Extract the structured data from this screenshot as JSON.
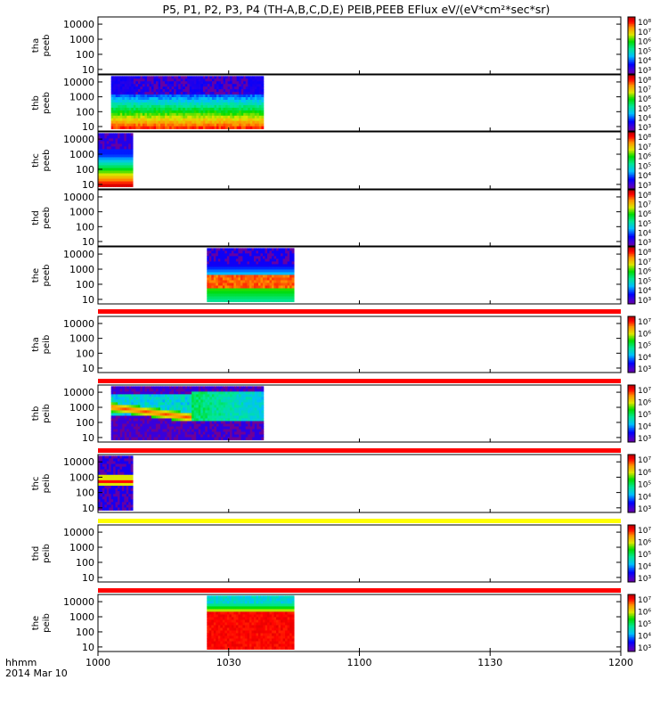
{
  "title": "P5, P1, P2, P3, P4 (TH-A,B,C,D,E) PEIB,PEEB EFlux eV/(eV*cm²*sec*sr)",
  "footer": {
    "time_label": "hhmm",
    "date_label": "2014 Mar 10"
  },
  "x_axis": {
    "range": [
      "10:00",
      "12:00"
    ],
    "ticks": [
      {
        "label": "1000",
        "minutes": 0
      },
      {
        "label": "1030",
        "minutes": 30
      },
      {
        "label": "1100",
        "minutes": 60
      },
      {
        "label": "1130",
        "minutes": 90
      },
      {
        "label": "1200",
        "minutes": 120
      }
    ]
  },
  "colorbars": {
    "peeb": {
      "ticks": [
        "10³",
        "10⁴",
        "10⁵",
        "10⁶",
        "10⁷",
        "10⁸"
      ]
    },
    "peib": {
      "ticks": [
        "10³",
        "10⁴",
        "10⁵",
        "10⁶",
        "10⁷"
      ]
    }
  },
  "panels": [
    {
      "probe": "tha",
      "product": "peeb",
      "y_ticks": [
        "10",
        "100",
        "1000",
        "10000"
      ],
      "has_data": false
    },
    {
      "probe": "thb",
      "product": "peeb",
      "y_ticks": [
        "10",
        "100",
        "1000",
        "10000"
      ],
      "has_data": true
    },
    {
      "probe": "thc",
      "product": "peeb",
      "y_ticks": [
        "10",
        "100",
        "1000",
        "10000"
      ],
      "has_data": true
    },
    {
      "probe": "thd",
      "product": "peeb",
      "y_ticks": [
        "10",
        "100",
        "1000",
        "10000"
      ],
      "has_data": false
    },
    {
      "probe": "the",
      "product": "peeb",
      "y_ticks": [
        "10",
        "100",
        "1000",
        "10000"
      ],
      "has_data": true
    },
    {
      "probe": "tha",
      "product": "peib",
      "y_ticks": [
        "10",
        "100",
        "1000",
        "10000"
      ],
      "has_data": false
    },
    {
      "probe": "thb",
      "product": "peib",
      "y_ticks": [
        "10",
        "100",
        "1000",
        "10000"
      ],
      "has_data": true
    },
    {
      "probe": "thc",
      "product": "peib",
      "y_ticks": [
        "10",
        "100",
        "1000",
        "10000"
      ],
      "has_data": true
    },
    {
      "probe": "thd",
      "product": "peib",
      "y_ticks": [
        "10",
        "100",
        "1000",
        "10000"
      ],
      "has_data": false
    },
    {
      "probe": "the",
      "product": "peib",
      "y_ticks": [
        "10",
        "100",
        "1000",
        "10000"
      ],
      "has_data": true
    }
  ],
  "chart_data": {
    "type": "heatmap",
    "title": "P5, P1, P2, P3, P4 (TH-A,B,C,D,E) PEIB,PEEB EFlux eV/(eV*cm²*sec*sr)",
    "x": {
      "range_minutes_after_1000": [
        0,
        120
      ]
    },
    "y": {
      "scale": "log",
      "ylim": [
        5,
        30000
      ]
    },
    "color": {
      "scale": "log"
    },
    "series": [
      {
        "panel": "thb peeb",
        "blocks": [
          {
            "x0": 3,
            "x1": 38,
            "y0": 7,
            "y1": 25000,
            "style": "electron_broad"
          }
        ]
      },
      {
        "panel": "thc peeb",
        "blocks": [
          {
            "x0": 0,
            "x1": 8,
            "y0": 7,
            "y1": 25000,
            "style": "electron_low_hot"
          }
        ]
      },
      {
        "panel": "the peeb",
        "blocks": [
          {
            "x0": 25,
            "x1": 45,
            "y0": 7,
            "y1": 25000,
            "style": "electron_mid_band"
          }
        ]
      },
      {
        "panel": "thb peib",
        "blocks": [
          {
            "x0": 3,
            "x1": 21.5,
            "y0": 7,
            "y1": 25000,
            "style": "ion_dispersed"
          },
          {
            "x0": 21.5,
            "x1": 38,
            "y0": 7,
            "y1": 25000,
            "style": "ion_broad"
          }
        ]
      },
      {
        "panel": "thc peib",
        "blocks": [
          {
            "x0": 0,
            "x1": 8,
            "y0": 7,
            "y1": 25000,
            "style": "ion_beam"
          }
        ]
      },
      {
        "panel": "the peib",
        "blocks": [
          {
            "x0": 25,
            "x1": 45,
            "y0": 7,
            "y1": 25000,
            "style": "ion_hot"
          }
        ]
      }
    ],
    "separator_bars": [
      {
        "after_panel": 4,
        "color": "#ff0000"
      },
      {
        "after_panel": 5,
        "color": "#ff0000"
      },
      {
        "after_panel": 6,
        "color": "#ff0000"
      },
      {
        "after_panel": 7,
        "color": "#ffff00"
      },
      {
        "after_panel": 8,
        "color": "#ff0000"
      }
    ]
  }
}
